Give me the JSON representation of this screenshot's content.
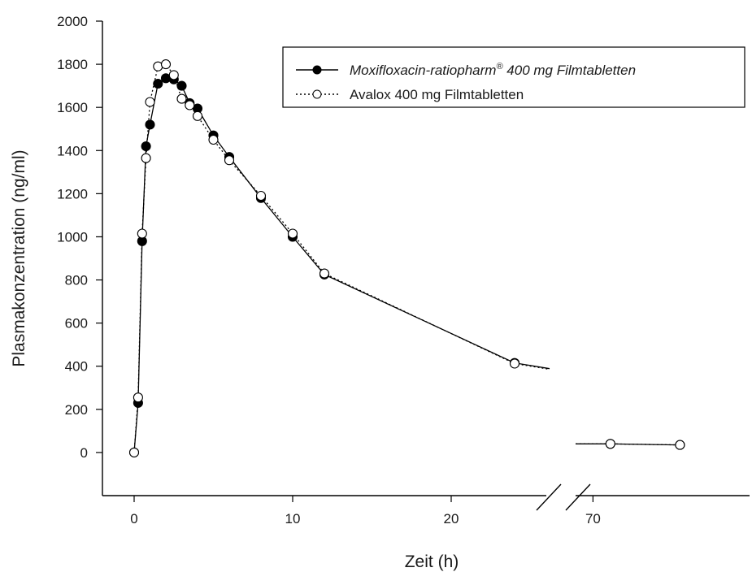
{
  "chart_data": {
    "type": "line",
    "xlabel": "Zeit (h)",
    "ylabel": "Plasmakonzentration (ng/ml)",
    "ylim": [
      -200,
      2000
    ],
    "yticks": [
      0,
      200,
      400,
      600,
      800,
      1000,
      1200,
      1400,
      1600,
      1800,
      2000
    ],
    "x_segments": [
      {
        "range": [
          -2,
          26
        ],
        "ticks": [
          0,
          10,
          20
        ]
      },
      {
        "range": [
          68,
          88
        ],
        "ticks": [
          70
        ]
      }
    ],
    "axis_break": true,
    "grid": false,
    "legend_position": "top-right",
    "series": [
      {
        "name": "Moxifloxacin-ratiopharm® 400 mg Filmtabletten",
        "name_main": "Moxifloxacin-ratiopharm",
        "name_sup": "®",
        "name_rest": " 400 mg Filmtabletten",
        "marker": "filled-circle",
        "line": "solid",
        "color": "#000000",
        "x": [
          0,
          0.25,
          0.5,
          0.75,
          1,
          1.5,
          2,
          2.5,
          3,
          3.5,
          4,
          5,
          6,
          8,
          10,
          12,
          24,
          72,
          80
        ],
        "y": [
          0,
          230,
          980,
          1420,
          1520,
          1710,
          1735,
          1730,
          1700,
          1620,
          1595,
          1470,
          1370,
          1180,
          1000,
          825,
          415,
          40,
          35
        ]
      },
      {
        "name": "Avalox 400 mg Filmtabletten",
        "marker": "open-circle",
        "line": "dotted",
        "color": "#000000",
        "x": [
          0,
          0.25,
          0.5,
          0.75,
          1,
          1.5,
          2,
          2.5,
          3,
          3.5,
          4,
          5,
          6,
          8,
          10,
          12,
          24,
          72,
          80
        ],
        "y": [
          0,
          255,
          1015,
          1365,
          1625,
          1790,
          1800,
          1750,
          1640,
          1610,
          1560,
          1450,
          1355,
          1190,
          1015,
          830,
          412,
          40,
          35
        ]
      }
    ]
  }
}
